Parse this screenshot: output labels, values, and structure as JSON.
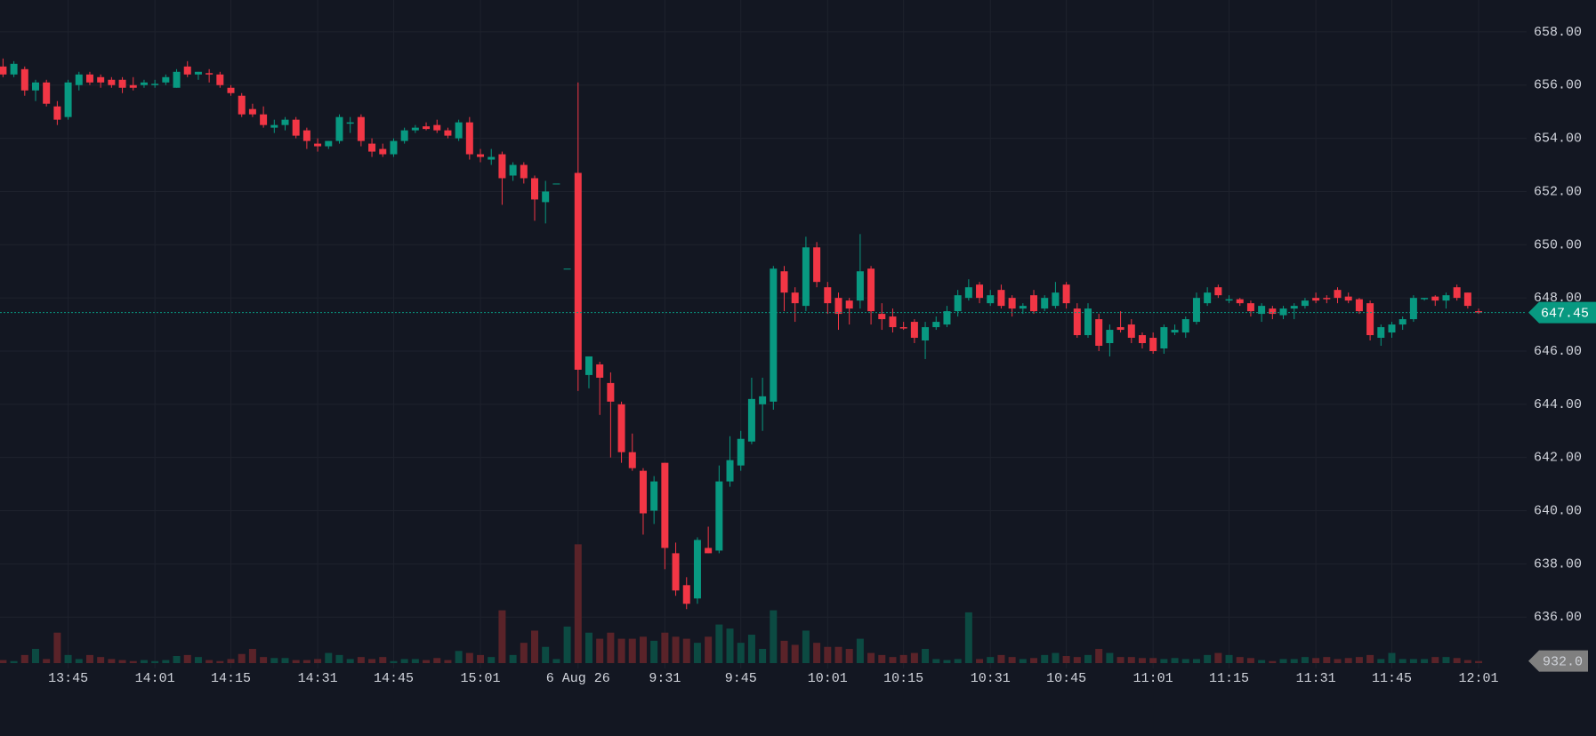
{
  "chart_data": {
    "type": "candlestick",
    "categories": [
      null,
      null,
      null,
      null,
      null,
      null,
      "13:45",
      null,
      null,
      null,
      null,
      null,
      null,
      null,
      "14:01",
      null,
      null,
      null,
      null,
      null,
      null,
      "14:15",
      null,
      null,
      null,
      null,
      null,
      null,
      null,
      "14:31",
      null,
      null,
      null,
      null,
      null,
      null,
      "14:45",
      null,
      null,
      null,
      null,
      null,
      null,
      null,
      "15:01",
      null,
      null,
      null,
      null,
      null,
      null,
      null,
      null,
      "6 Aug 26",
      null,
      null,
      null,
      null,
      null,
      null,
      null,
      "9:31",
      null,
      null,
      null,
      null,
      null,
      null,
      "9:45",
      null,
      null,
      null,
      null,
      null,
      null,
      null,
      "10:01",
      null,
      null,
      null,
      null,
      null,
      null,
      "10:15",
      null,
      null,
      null,
      null,
      null,
      null,
      null,
      "10:31",
      null,
      null,
      null,
      null,
      null,
      null,
      "10:45",
      null,
      null,
      null,
      null,
      null,
      null,
      null,
      "11:01",
      null,
      null,
      null,
      null,
      null,
      null,
      "11:15",
      null,
      null,
      null,
      null,
      null,
      null,
      null,
      "11:31",
      null,
      null,
      null,
      null,
      null,
      null,
      "11:45",
      null,
      null,
      null,
      null,
      null,
      null,
      null,
      "12:01"
    ],
    "ohlc": {
      "open": [
        656.7,
        656.4,
        656.6,
        655.8,
        656.1,
        655.2,
        654.8,
        656.0,
        656.4,
        656.3,
        656.2,
        656.2,
        656.0,
        656.0,
        656.0,
        656.1,
        655.9,
        656.7,
        656.4,
        656.45,
        656.4,
        655.9,
        655.6,
        655.1,
        654.9,
        654.4,
        654.5,
        654.7,
        654.3,
        653.8,
        653.7,
        653.9,
        654.55,
        654.8,
        653.8,
        653.6,
        653.4,
        653.9,
        654.3,
        654.45,
        654.5,
        654.3,
        654.0,
        654.6,
        653.4,
        653.2,
        653.4,
        652.6,
        653.0,
        652.5,
        651.6,
        652.3,
        649.1,
        652.7,
        645.1,
        645.5,
        644.8,
        644.0,
        642.2,
        641.5,
        640.0,
        641.8,
        638.4,
        637.2,
        636.7,
        638.6,
        638.5,
        641.1,
        641.7,
        642.6,
        644.0,
        644.1,
        649.0,
        648.2,
        647.7,
        649.9,
        648.4,
        648.0,
        647.9,
        647.9,
        649.1,
        647.4,
        647.3,
        646.9,
        647.1,
        646.4,
        646.9,
        647.0,
        647.5,
        648.0,
        648.5,
        647.8,
        648.3,
        648.0,
        647.6,
        648.1,
        647.6,
        647.7,
        648.5,
        647.6,
        646.6,
        647.2,
        646.3,
        646.9,
        647.0,
        646.6,
        646.5,
        646.1,
        646.7,
        646.7,
        647.1,
        647.8,
        648.4,
        647.9,
        647.95,
        647.8,
        647.4,
        647.6,
        647.35,
        647.6,
        647.7,
        648.0,
        648.0,
        648.3,
        648.05,
        647.95,
        647.8,
        646.5,
        646.7,
        647.0,
        647.2,
        647.95,
        648.05,
        647.9,
        648.4,
        648.2,
        647.5
      ],
      "high": [
        657.0,
        656.9,
        656.7,
        656.2,
        656.2,
        655.4,
        656.2,
        656.5,
        656.5,
        656.4,
        656.3,
        656.3,
        656.3,
        656.2,
        656.2,
        656.4,
        656.6,
        656.9,
        656.5,
        656.6,
        656.5,
        656.0,
        655.7,
        655.3,
        655.2,
        654.7,
        654.8,
        654.8,
        654.4,
        654.0,
        653.9,
        654.9,
        654.8,
        654.9,
        654.0,
        653.8,
        654.0,
        654.4,
        654.5,
        654.6,
        654.7,
        654.4,
        654.7,
        654.8,
        653.6,
        653.6,
        653.5,
        653.1,
        653.1,
        652.6,
        652.4,
        652.3,
        649.1,
        656.1,
        645.8,
        645.6,
        645.2,
        644.1,
        642.9,
        641.6,
        641.3,
        641.8,
        638.8,
        637.5,
        639.0,
        639.4,
        641.7,
        642.8,
        643.0,
        645.0,
        645.0,
        649.2,
        649.2,
        648.4,
        650.3,
        650.1,
        648.6,
        648.2,
        648.0,
        650.4,
        649.2,
        647.8,
        647.6,
        647.1,
        647.2,
        647.1,
        647.3,
        647.7,
        648.3,
        648.7,
        648.6,
        648.3,
        648.5,
        648.1,
        647.8,
        648.3,
        648.1,
        648.6,
        648.6,
        647.8,
        647.8,
        647.4,
        647.0,
        647.5,
        647.2,
        646.7,
        646.7,
        647.0,
        647.0,
        647.3,
        648.2,
        648.4,
        648.5,
        648.1,
        648.0,
        647.9,
        647.8,
        647.7,
        647.7,
        647.8,
        648.0,
        648.2,
        648.1,
        648.4,
        648.2,
        648.0,
        647.9,
        647.0,
        647.1,
        647.3,
        648.1,
        648.0,
        648.1,
        648.2,
        648.5,
        648.2,
        647.6
      ],
      "low": [
        656.3,
        656.3,
        655.6,
        655.4,
        655.2,
        654.5,
        654.7,
        655.8,
        656.0,
        655.9,
        655.9,
        655.7,
        655.8,
        655.9,
        655.9,
        656.0,
        655.9,
        656.3,
        656.2,
        656.1,
        655.9,
        655.6,
        654.8,
        654.8,
        654.4,
        654.2,
        654.3,
        654.0,
        653.6,
        653.5,
        653.6,
        653.8,
        654.2,
        653.7,
        653.3,
        653.3,
        653.3,
        653.8,
        654.2,
        654.3,
        654.2,
        654.0,
        653.9,
        653.2,
        653.1,
        653.0,
        651.5,
        652.4,
        652.3,
        650.9,
        650.8,
        652.3,
        649.1,
        644.5,
        644.6,
        643.6,
        642.0,
        641.8,
        641.5,
        639.1,
        639.5,
        637.8,
        636.8,
        636.3,
        636.5,
        638.4,
        638.4,
        640.9,
        641.5,
        642.5,
        643.0,
        643.8,
        647.5,
        647.1,
        647.5,
        648.4,
        647.4,
        646.8,
        647.0,
        647.6,
        647.0,
        646.8,
        646.7,
        646.8,
        646.3,
        645.7,
        646.8,
        646.9,
        647.3,
        647.9,
        647.8,
        647.7,
        647.6,
        647.3,
        647.4,
        647.4,
        647.5,
        647.6,
        647.6,
        646.5,
        646.5,
        646.0,
        645.8,
        646.7,
        646.3,
        646.1,
        645.9,
        645.9,
        646.6,
        646.5,
        647.0,
        647.7,
        648.0,
        647.8,
        647.7,
        647.3,
        647.1,
        647.2,
        647.2,
        647.2,
        647.6,
        647.8,
        647.8,
        647.8,
        647.8,
        647.4,
        646.4,
        646.2,
        646.5,
        646.8,
        647.1,
        647.9,
        647.7,
        647.6,
        647.9,
        647.6,
        647.4
      ],
      "close": [
        656.4,
        656.8,
        655.8,
        656.1,
        655.3,
        654.7,
        656.1,
        656.4,
        656.1,
        656.1,
        656.0,
        655.9,
        655.9,
        656.1,
        656.05,
        656.3,
        656.5,
        656.4,
        656.5,
        656.4,
        656.0,
        655.7,
        654.9,
        654.9,
        654.5,
        654.5,
        654.7,
        654.1,
        653.9,
        653.7,
        653.9,
        654.8,
        654.6,
        653.9,
        653.5,
        653.4,
        653.9,
        654.3,
        654.4,
        654.35,
        654.3,
        654.1,
        654.6,
        653.4,
        653.3,
        653.3,
        652.5,
        653.0,
        652.5,
        651.7,
        652.0,
        652.3,
        649.1,
        645.3,
        645.8,
        645.0,
        644.1,
        642.2,
        641.6,
        639.9,
        641.1,
        638.6,
        637.0,
        636.5,
        638.9,
        638.4,
        641.1,
        641.9,
        642.7,
        644.2,
        644.3,
        649.1,
        648.2,
        647.8,
        649.9,
        648.6,
        647.8,
        647.4,
        647.6,
        649.0,
        647.5,
        647.2,
        646.9,
        646.85,
        646.5,
        646.9,
        647.1,
        647.5,
        648.1,
        648.4,
        648.0,
        648.1,
        647.7,
        647.6,
        647.7,
        647.5,
        648.0,
        648.2,
        647.8,
        646.6,
        647.6,
        646.2,
        646.8,
        646.8,
        646.5,
        646.3,
        646.0,
        646.9,
        646.8,
        647.2,
        648.0,
        648.2,
        648.1,
        647.95,
        647.8,
        647.5,
        647.7,
        647.4,
        647.6,
        647.7,
        647.9,
        647.9,
        647.95,
        648.0,
        647.9,
        647.5,
        646.6,
        646.9,
        647.0,
        647.2,
        648.0,
        648.0,
        647.9,
        648.1,
        648.0,
        647.7,
        647.45
      ]
    },
    "volume": {
      "values": [
        1380,
        920,
        3680,
        6440,
        1840,
        13800,
        3680,
        1840,
        3680,
        2760,
        1840,
        1380,
        920,
        1380,
        920,
        1380,
        3220,
        3680,
        2760,
        1380,
        920,
        1840,
        4140,
        6440,
        2760,
        2300,
        2300,
        1380,
        1380,
        1840,
        4600,
        3680,
        1840,
        2760,
        1840,
        2760,
        920,
        1840,
        1840,
        1380,
        2300,
        1380,
        5520,
        4600,
        3680,
        2760,
        23920,
        3680,
        9200,
        14720,
        7360,
        1840,
        16560,
        53820,
        13800,
        11040,
        13800,
        11040,
        11040,
        11960,
        10120,
        13800,
        11960,
        11040,
        9200,
        11960,
        17480,
        15640,
        9200,
        12880,
        6440,
        23920,
        10120,
        8280,
        14720,
        9200,
        7360,
        7360,
        6440,
        11040,
        4600,
        3680,
        2760,
        3680,
        4600,
        6440,
        1840,
        1380,
        1840,
        23000,
        1840,
        2760,
        3680,
        2760,
        1840,
        2300,
        3680,
        4600,
        3220,
        2760,
        3680,
        6440,
        4600,
        2760,
        2760,
        2300,
        2300,
        1840,
        2300,
        1840,
        1840,
        3680,
        4600,
        3680,
        2760,
        2300,
        1380,
        920,
        1840,
        1840,
        2760,
        2300,
        2760,
        1840,
        2300,
        2760,
        3680,
        1840,
        4600,
        1840,
        1840,
        1840,
        2760,
        2760,
        2300,
        1380,
        932
      ],
      "last_value_label": "932.0",
      "ylim": [
        0,
        60000
      ]
    },
    "ylim": [
      633.2,
      659.2
    ],
    "yticks": [
      {
        "value": 636,
        "label": "636.00"
      },
      {
        "value": 638,
        "label": "638.00"
      },
      {
        "value": 640,
        "label": "640.00"
      },
      {
        "value": 642,
        "label": "642.00"
      },
      {
        "value": 644,
        "label": "644.00"
      },
      {
        "value": 646,
        "label": "646.00"
      },
      {
        "value": 648,
        "label": "648.00"
      },
      {
        "value": 650,
        "label": "650.00"
      },
      {
        "value": 652,
        "label": "652.00"
      },
      {
        "value": 654,
        "label": "654.00"
      },
      {
        "value": 656,
        "label": "656.00"
      },
      {
        "value": 658,
        "label": "658.00"
      }
    ],
    "grid": true,
    "up_color": "#089981",
    "down_color": "#f23645",
    "up_volume_color": "#0c4a42",
    "down_volume_color": "#5a2329",
    "last_price_color": "#089981",
    "last_volume_color": "#7f7f7f"
  }
}
